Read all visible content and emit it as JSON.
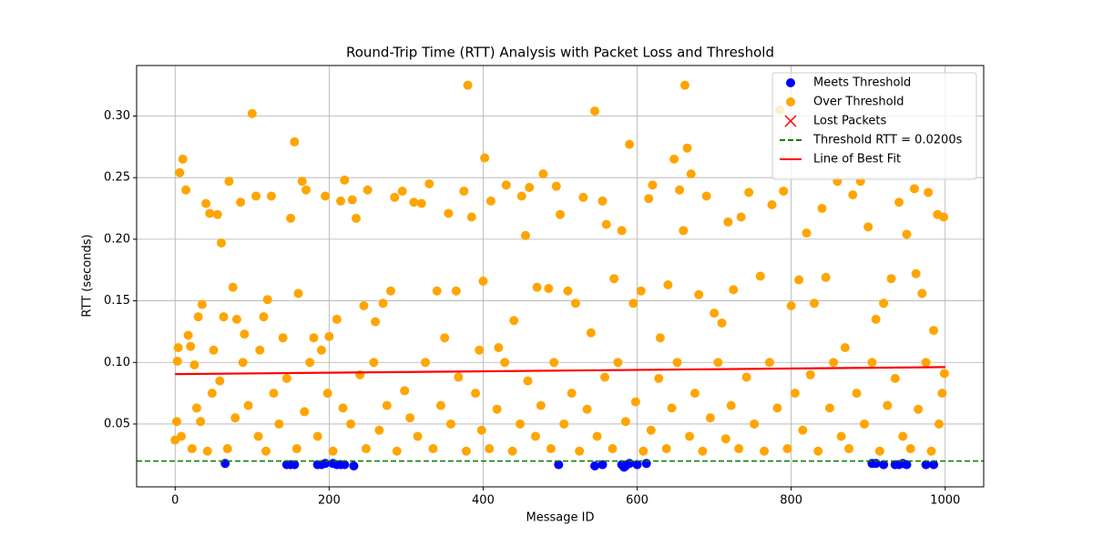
{
  "chart_data": {
    "type": "scatter",
    "title": "Round-Trip Time (RTT) Analysis with Packet Loss and Threshold",
    "xlabel": "Message ID",
    "ylabel": "RTT (seconds)",
    "xlim": [
      -50,
      1050
    ],
    "ylim": [
      -0.001,
      0.341
    ],
    "xticks": [
      0,
      200,
      400,
      600,
      800,
      1000
    ],
    "yticks": [
      0.05,
      {
        "value": 0.1,
        "label": "0.10"
      },
      0.15,
      {
        "value": 0.2,
        "label": "0.20"
      },
      0.25,
      {
        "value": 0.3,
        "label": "0.30"
      }
    ],
    "grid": true,
    "legend": "upper right",
    "series": [
      {
        "name": "Meets Threshold",
        "type": "scatter",
        "marker": "o",
        "color": "#0000ff",
        "x": [
          65,
          145,
          150,
          155,
          185,
          190,
          195,
          205,
          210,
          215,
          220,
          232,
          498,
          545,
          555,
          580,
          583,
          585,
          590,
          600,
          612,
          905,
          910,
          920,
          935,
          940,
          945,
          950,
          975,
          985
        ],
        "values": [
          0.018,
          0.017,
          0.017,
          0.017,
          0.017,
          0.017,
          0.018,
          0.018,
          0.017,
          0.017,
          0.017,
          0.016,
          0.017,
          0.016,
          0.017,
          0.017,
          0.015,
          0.016,
          0.018,
          0.017,
          0.018,
          0.018,
          0.018,
          0.017,
          0.017,
          0.017,
          0.018,
          0.017,
          0.017,
          0.017
        ]
      },
      {
        "name": "Over Threshold",
        "type": "scatter",
        "marker": "o",
        "color": "#ffa500",
        "x": [
          0,
          2,
          3,
          4,
          6,
          10,
          14,
          17,
          20,
          25,
          30,
          35,
          40,
          45,
          50,
          55,
          60,
          63,
          70,
          75,
          80,
          85,
          90,
          100,
          105,
          110,
          115,
          120,
          125,
          140,
          150,
          155,
          160,
          165,
          170,
          180,
          190,
          195,
          200,
          210,
          215,
          220,
          230,
          235,
          245,
          250,
          260,
          270,
          280,
          285,
          295,
          310,
          320,
          330,
          340,
          350,
          355,
          365,
          375,
          380,
          385,
          395,
          400,
          402,
          410,
          420,
          430,
          440,
          450,
          455,
          460,
          470,
          478,
          485,
          495,
          500,
          510,
          520,
          530,
          540,
          545,
          555,
          560,
          570,
          580,
          590,
          595,
          605,
          615,
          620,
          630,
          640,
          648,
          655,
          660,
          662,
          665,
          670,
          680,
          690,
          700,
          710,
          718,
          725,
          735,
          745,
          760,
          775,
          785,
          790,
          800,
          810,
          820,
          830,
          840,
          845,
          860,
          870,
          880,
          890,
          900,
          910,
          920,
          930,
          940,
          950,
          960,
          962,
          970,
          978,
          985,
          990,
          998,
          8,
          22,
          28,
          33,
          42,
          48,
          58,
          68,
          78,
          88,
          95,
          108,
          118,
          128,
          135,
          145,
          158,
          168,
          175,
          185,
          198,
          205,
          218,
          228,
          240,
          248,
          258,
          265,
          275,
          288,
          298,
          305,
          315,
          325,
          335,
          345,
          358,
          368,
          378,
          390,
          398,
          408,
          418,
          428,
          438,
          448,
          458,
          468,
          475,
          488,
          492,
          505,
          515,
          525,
          535,
          548,
          558,
          568,
          575,
          585,
          598,
          608,
          618,
          628,
          638,
          645,
          652,
          668,
          675,
          685,
          695,
          705,
          715,
          722,
          732,
          742,
          752,
          765,
          772,
          782,
          795,
          805,
          815,
          825,
          835,
          850,
          855,
          865,
          875,
          885,
          895,
          905,
          915,
          925,
          935,
          945,
          955,
          965,
          975,
          982,
          992,
          996,
          999
        ],
        "values": [
          0.037,
          0.052,
          0.101,
          0.112,
          0.254,
          0.265,
          0.24,
          0.122,
          0.113,
          0.098,
          0.137,
          0.147,
          0.229,
          0.221,
          0.11,
          0.22,
          0.197,
          0.137,
          0.247,
          0.161,
          0.135,
          0.23,
          0.123,
          0.302,
          0.235,
          0.11,
          0.137,
          0.151,
          0.235,
          0.12,
          0.217,
          0.279,
          0.156,
          0.247,
          0.24,
          0.12,
          0.11,
          0.235,
          0.121,
          0.135,
          0.231,
          0.248,
          0.232,
          0.217,
          0.146,
          0.24,
          0.133,
          0.148,
          0.158,
          0.234,
          0.239,
          0.23,
          0.229,
          0.245,
          0.158,
          0.12,
          0.221,
          0.158,
          0.239,
          0.325,
          0.218,
          0.11,
          0.166,
          0.266,
          0.231,
          0.112,
          0.244,
          0.134,
          0.235,
          0.203,
          0.242,
          0.161,
          0.253,
          0.16,
          0.243,
          0.22,
          0.158,
          0.148,
          0.234,
          0.124,
          0.304,
          0.231,
          0.212,
          0.168,
          0.207,
          0.277,
          0.148,
          0.158,
          0.233,
          0.244,
          0.12,
          0.163,
          0.265,
          0.24,
          0.207,
          0.325,
          0.274,
          0.253,
          0.155,
          0.235,
          0.14,
          0.132,
          0.214,
          0.159,
          0.218,
          0.238,
          0.17,
          0.228,
          0.305,
          0.239,
          0.146,
          0.167,
          0.205,
          0.148,
          0.225,
          0.169,
          0.247,
          0.112,
          0.236,
          0.247,
          0.21,
          0.135,
          0.148,
          0.168,
          0.23,
          0.204,
          0.241,
          0.172,
          0.156,
          0.238,
          0.126,
          0.22,
          0.218,
          0.04,
          0.03,
          0.063,
          0.052,
          0.028,
          0.075,
          0.085,
          0.03,
          0.055,
          0.1,
          0.065,
          0.04,
          0.028,
          0.075,
          0.05,
          0.087,
          0.03,
          0.06,
          0.1,
          0.04,
          0.075,
          0.028,
          0.063,
          0.05,
          0.09,
          0.03,
          0.1,
          0.045,
          0.065,
          0.028,
          0.077,
          0.055,
          0.04,
          0.1,
          0.03,
          0.065,
          0.05,
          0.088,
          0.028,
          0.075,
          0.045,
          0.03,
          0.062,
          0.1,
          0.028,
          0.05,
          0.085,
          0.04,
          0.065,
          0.03,
          0.1,
          0.05,
          0.075,
          0.028,
          0.062,
          0.04,
          0.088,
          0.03,
          0.1,
          0.052,
          0.068,
          0.028,
          0.045,
          0.087,
          0.03,
          0.063,
          0.1,
          0.04,
          0.075,
          0.028,
          0.055,
          0.1,
          0.038,
          0.065,
          0.03,
          0.088,
          0.05,
          0.028,
          0.1,
          0.063,
          0.03,
          0.075,
          0.045,
          0.09,
          0.028,
          0.063,
          0.1,
          0.04,
          0.03,
          0.075,
          0.05,
          0.1,
          0.028,
          0.065,
          0.087,
          0.04,
          0.03,
          0.062,
          0.1,
          0.028,
          0.05,
          0.075,
          0.091
        ]
      },
      {
        "name": "Lost Packets",
        "type": "scatter",
        "marker": "x",
        "color": "#ff0000",
        "x": [],
        "values": []
      },
      {
        "name": "Threshold RTT = 0.0200s",
        "type": "hline",
        "linestyle": "dashed",
        "color": "#008000",
        "value": 0.02
      },
      {
        "name": "Line of Best Fit",
        "type": "line",
        "linestyle": "solid",
        "color": "#ff0000",
        "x": [
          0,
          1000
        ],
        "values": [
          0.0905,
          0.0962
        ]
      }
    ]
  }
}
